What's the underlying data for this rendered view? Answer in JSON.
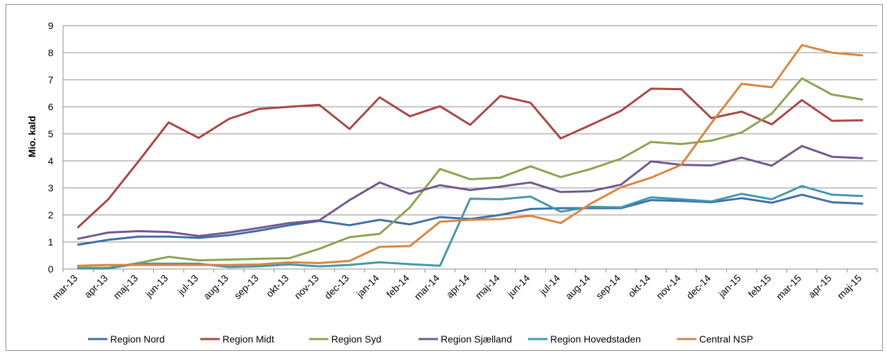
{
  "chart_data": {
    "type": "line",
    "title": "",
    "xlabel": "",
    "ylabel": "Mio. kald",
    "ylim": [
      0,
      9
    ],
    "yticks": [
      "0",
      "1",
      "2",
      "3",
      "4",
      "5",
      "6",
      "7",
      "8",
      "9"
    ],
    "grid": true,
    "legend_position": "bottom",
    "categories": [
      "mar-13",
      "apr-13",
      "maj-13",
      "jun-13",
      "jul-13",
      "aug-13",
      "sep-13",
      "okt-13",
      "nov-13",
      "dec-13",
      "jan-14",
      "feb-14",
      "mar-14",
      "apr-14",
      "maj-14",
      "jun-14",
      "jul-14",
      "aug-14",
      "sep-14",
      "okt-14",
      "nov-14",
      "dec-14",
      "jan-15",
      "feb-15",
      "mar-15",
      "apr-15",
      "maj-15"
    ],
    "series": [
      {
        "name": "Region Nord",
        "color": "#3F6EAA",
        "values": [
          0.9,
          1.08,
          1.2,
          1.2,
          1.15,
          1.25,
          1.42,
          1.62,
          1.78,
          1.62,
          1.82,
          1.65,
          1.92,
          1.85,
          2.0,
          2.22,
          2.25,
          2.25,
          2.25,
          2.55,
          2.52,
          2.47,
          2.62,
          2.45,
          2.75,
          2.47,
          2.42
        ]
      },
      {
        "name": "Region Midt",
        "color": "#AA4643",
        "values": [
          1.55,
          2.58,
          3.98,
          5.42,
          4.85,
          5.55,
          5.92,
          6.0,
          6.07,
          5.18,
          6.35,
          5.65,
          6.02,
          5.33,
          6.4,
          6.15,
          4.83,
          5.33,
          5.85,
          6.67,
          6.65,
          5.58,
          5.82,
          5.35,
          6.25,
          5.48,
          5.5
        ]
      },
      {
        "name": "Region Syd",
        "color": "#89A54E",
        "values": [
          0.05,
          0.05,
          0.22,
          0.45,
          0.32,
          0.35,
          0.38,
          0.4,
          0.75,
          1.18,
          1.3,
          2.28,
          3.7,
          3.32,
          3.38,
          3.8,
          3.4,
          3.7,
          4.08,
          4.7,
          4.62,
          4.75,
          5.05,
          5.75,
          7.05,
          6.45,
          6.27
        ]
      },
      {
        "name": "Region Sjælland",
        "color": "#71588F",
        "values": [
          1.12,
          1.35,
          1.4,
          1.37,
          1.22,
          1.35,
          1.52,
          1.7,
          1.8,
          2.55,
          3.2,
          2.78,
          3.1,
          2.92,
          3.05,
          3.2,
          2.85,
          2.88,
          3.12,
          3.98,
          3.85,
          3.83,
          4.12,
          3.82,
          4.55,
          4.15,
          4.1
        ]
      },
      {
        "name": "Region Hovedstaden",
        "color": "#4198AF",
        "values": [
          0.02,
          0.02,
          0.2,
          0.2,
          0.2,
          0.07,
          0.1,
          0.17,
          0.1,
          0.15,
          0.25,
          0.18,
          0.12,
          2.6,
          2.58,
          2.68,
          2.12,
          2.3,
          2.28,
          2.65,
          2.58,
          2.5,
          2.78,
          2.58,
          3.07,
          2.75,
          2.7
        ]
      },
      {
        "name": "Central NSP",
        "color": "#DB843D",
        "values": [
          0.12,
          0.15,
          0.15,
          0.15,
          0.15,
          0.15,
          0.17,
          0.25,
          0.22,
          0.3,
          0.82,
          0.85,
          1.75,
          1.82,
          1.85,
          1.97,
          1.7,
          2.42,
          3.02,
          3.38,
          3.85,
          5.4,
          6.85,
          6.72,
          8.28,
          8.0,
          7.9
        ]
      }
    ]
  }
}
